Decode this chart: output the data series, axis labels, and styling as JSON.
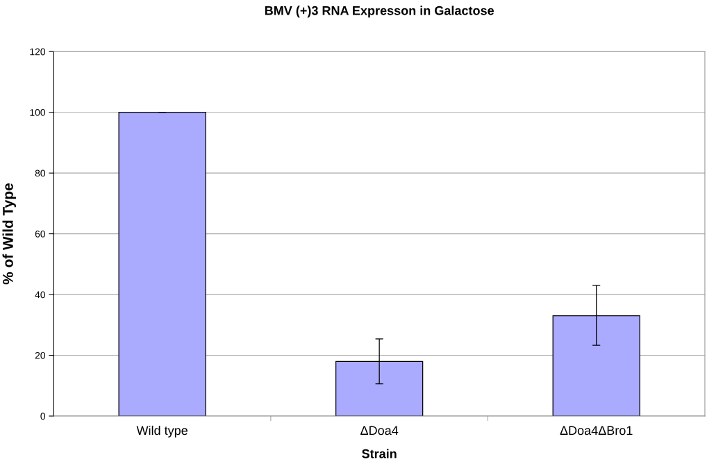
{
  "chart_data": {
    "type": "bar",
    "title": "BMV (+)3 RNA Expresson in Galactose",
    "xlabel": "Strain",
    "ylabel": "% of Wild Type",
    "categories": [
      "Wild type",
      "ΔDoa4",
      "ΔDoa4ΔBro1"
    ],
    "values": [
      100,
      18,
      33
    ],
    "color": "#aaaaff",
    "errors": [
      0,
      [
        10.6,
        25.4
      ],
      [
        23.3,
        43.0
      ]
    ],
    "ylim": [
      0,
      120
    ],
    "yticks": [
      0,
      20,
      40,
      60,
      80,
      100,
      120
    ],
    "grid": "y",
    "legend": false
  }
}
